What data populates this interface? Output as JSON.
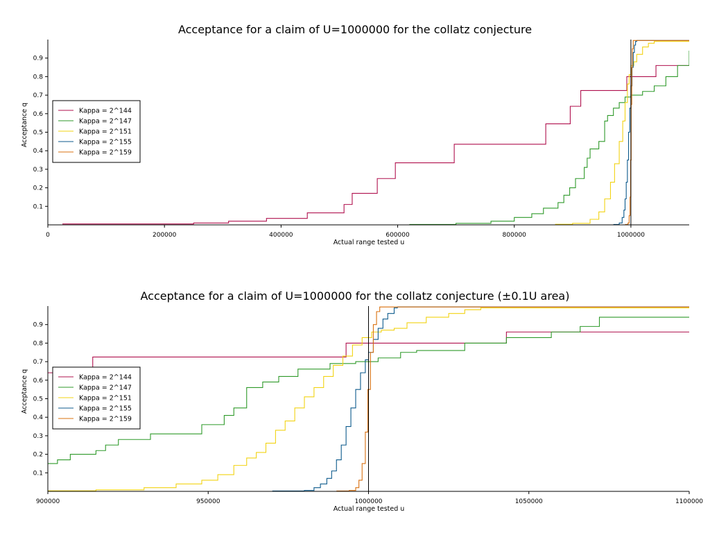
{
  "colors": {
    "kappa_144": "#b0114e",
    "kappa_147": "#2f9a2a",
    "kappa_151": "#f2d313",
    "kappa_155": "#0c5a8c",
    "kappa_159": "#d9700f",
    "reference_line": "#000000"
  },
  "chart_data": [
    {
      "type": "line",
      "step": true,
      "title": "Acceptance for a claim of U=1000000 for the collatz conjecture",
      "xlabel": "Actual range tested u",
      "ylabel": "Acceptance q",
      "xlim": [
        0,
        1100000
      ],
      "ylim": [
        0,
        1.0
      ],
      "xticks": [
        0,
        200000,
        400000,
        600000,
        800000,
        1000000
      ],
      "xtick_labels": [
        "0",
        "200000",
        "400000",
        "600000",
        "800000",
        "1000000"
      ],
      "yticks": [
        0.1,
        0.2,
        0.3,
        0.4,
        0.5,
        0.6,
        0.7,
        0.8,
        0.9
      ],
      "ytick_labels": [
        "0.1",
        "0.2",
        "0.3",
        "0.4",
        "0.5",
        "0.6",
        "0.7",
        "0.8",
        "0.9"
      ],
      "grid": false,
      "legend": "center-left",
      "reference_x": 1000000,
      "series": [
        {
          "name": "Kappa = 2^144",
          "color_key": "kappa_144",
          "x": [
            25000,
            250000,
            310000,
            375000,
            445000,
            508000,
            522000,
            565000,
            596000,
            697000,
            854000,
            896000,
            914000,
            993000,
            1043000,
            1100000
          ],
          "y": [
            0.005,
            0.01,
            0.02,
            0.035,
            0.065,
            0.11,
            0.17,
            0.25,
            0.335,
            0.435,
            0.545,
            0.64,
            0.725,
            0.8,
            0.86,
            0.86
          ]
        },
        {
          "name": "Kappa = 2^147",
          "color_key": "kappa_147",
          "x": [
            620000,
            700000,
            760000,
            800000,
            830000,
            850000,
            875000,
            885000,
            895000,
            905000,
            920000,
            925000,
            930000,
            945000,
            955000,
            960000,
            970000,
            980000,
            990000,
            1000000,
            1020000,
            1040000,
            1060000,
            1080000,
            1100000
          ],
          "y": [
            0.002,
            0.008,
            0.02,
            0.04,
            0.06,
            0.09,
            0.12,
            0.16,
            0.2,
            0.25,
            0.31,
            0.36,
            0.41,
            0.45,
            0.56,
            0.59,
            0.63,
            0.66,
            0.69,
            0.7,
            0.72,
            0.75,
            0.8,
            0.86,
            0.94
          ]
        },
        {
          "name": "Kappa = 2^151",
          "color_key": "kappa_151",
          "x": [
            870000,
            900000,
            930000,
            945000,
            955000,
            965000,
            972000,
            980000,
            986000,
            990000,
            994000,
            997000,
            1000000,
            1005000,
            1010000,
            1020000,
            1030000,
            1040000,
            1100000
          ],
          "y": [
            0.003,
            0.008,
            0.03,
            0.07,
            0.14,
            0.23,
            0.33,
            0.45,
            0.56,
            0.66,
            0.76,
            0.81,
            0.86,
            0.88,
            0.92,
            0.96,
            0.98,
            0.99,
            0.99
          ]
        },
        {
          "name": "Kappa = 2^155",
          "color_key": "kappa_155",
          "x": [
            970000,
            980000,
            985000,
            988000,
            990000,
            992000,
            994000,
            996000,
            998000,
            1000000,
            1002000,
            1004000,
            1006000,
            1008000,
            1010000,
            1100000
          ],
          "y": [
            0.002,
            0.01,
            0.04,
            0.08,
            0.14,
            0.23,
            0.35,
            0.5,
            0.63,
            0.75,
            0.85,
            0.93,
            0.97,
            0.99,
            0.995,
            0.995
          ]
        },
        {
          "name": "Kappa = 2^159",
          "color_key": "kappa_159",
          "x": [
            990000,
            995000,
            997000,
            998500,
            999500,
            1000500,
            1001500,
            1002500,
            1004000,
            1100000
          ],
          "y": [
            0.002,
            0.01,
            0.05,
            0.15,
            0.35,
            0.65,
            0.85,
            0.95,
            0.995,
            0.995
          ]
        }
      ]
    },
    {
      "type": "line",
      "step": true,
      "title": "Acceptance for a claim of U=1000000 for the collatz conjecture (±0.1U area)",
      "xlabel": "Actual range tested u",
      "ylabel": "Acceptance q",
      "xlim": [
        900000,
        1100000
      ],
      "ylim": [
        0,
        1.0
      ],
      "xticks": [
        900000,
        950000,
        1000000,
        1050000,
        1100000
      ],
      "xtick_labels": [
        "900000",
        "950000",
        "1000000",
        "1050000",
        "1100000"
      ],
      "yticks": [
        0.1,
        0.2,
        0.3,
        0.4,
        0.5,
        0.6,
        0.7,
        0.8,
        0.9
      ],
      "ytick_labels": [
        "0.1",
        "0.2",
        "0.3",
        "0.4",
        "0.5",
        "0.6",
        "0.7",
        "0.8",
        "0.9"
      ],
      "grid": false,
      "legend": "center-left",
      "reference_x": 1000000,
      "series": [
        {
          "name": "Kappa = 2^144",
          "color_key": "kappa_144",
          "x": [
            900000,
            914000,
            993000,
            1043000,
            1100000
          ],
          "y": [
            0.64,
            0.725,
            0.8,
            0.86,
            0.86
          ]
        },
        {
          "name": "Kappa = 2^147",
          "color_key": "kappa_147",
          "x": [
            900000,
            903000,
            907000,
            915000,
            918000,
            922000,
            932000,
            948000,
            955000,
            958000,
            962000,
            967000,
            972000,
            978000,
            988000,
            996000,
            1003000,
            1010000,
            1015000,
            1030000,
            1043000,
            1057000,
            1066000,
            1072000,
            1100000
          ],
          "y": [
            0.15,
            0.17,
            0.2,
            0.22,
            0.25,
            0.28,
            0.31,
            0.36,
            0.41,
            0.45,
            0.56,
            0.59,
            0.62,
            0.66,
            0.69,
            0.7,
            0.72,
            0.75,
            0.76,
            0.8,
            0.83,
            0.86,
            0.89,
            0.94,
            0.94
          ]
        },
        {
          "name": "Kappa = 2^151",
          "color_key": "kappa_151",
          "x": [
            900000,
            915000,
            930000,
            940000,
            948000,
            953000,
            958000,
            962000,
            965000,
            968000,
            971000,
            974000,
            977000,
            980000,
            983000,
            986000,
            989000,
            992000,
            995000,
            998000,
            1001000,
            1004000,
            1008000,
            1012000,
            1018000,
            1025000,
            1030000,
            1035000,
            1100000
          ],
          "y": [
            0.003,
            0.008,
            0.02,
            0.04,
            0.06,
            0.09,
            0.14,
            0.18,
            0.21,
            0.26,
            0.33,
            0.38,
            0.45,
            0.51,
            0.56,
            0.62,
            0.68,
            0.73,
            0.79,
            0.83,
            0.86,
            0.87,
            0.88,
            0.91,
            0.94,
            0.96,
            0.98,
            0.99,
            0.99
          ]
        },
        {
          "name": "Kappa = 2^155",
          "color_key": "kappa_155",
          "x": [
            970000,
            980000,
            983000,
            985000,
            987000,
            988500,
            990000,
            991500,
            993000,
            994500,
            996000,
            997500,
            999000,
            1000000,
            1001500,
            1003000,
            1004500,
            1006000,
            1008000,
            1009000,
            1100000
          ],
          "y": [
            0.002,
            0.005,
            0.02,
            0.04,
            0.07,
            0.11,
            0.17,
            0.25,
            0.35,
            0.45,
            0.55,
            0.64,
            0.71,
            0.75,
            0.82,
            0.88,
            0.93,
            0.96,
            0.99,
            0.995,
            0.995
          ]
        },
        {
          "name": "Kappa = 2^159",
          "color_key": "kappa_159",
          "x": [
            990000,
            994000,
            996000,
            997000,
            998000,
            999000,
            999800,
            1000600,
            1001500,
            1002500,
            1003500,
            1100000
          ],
          "y": [
            0.002,
            0.005,
            0.02,
            0.06,
            0.15,
            0.32,
            0.55,
            0.75,
            0.9,
            0.97,
            0.995,
            0.995
          ]
        }
      ]
    }
  ]
}
